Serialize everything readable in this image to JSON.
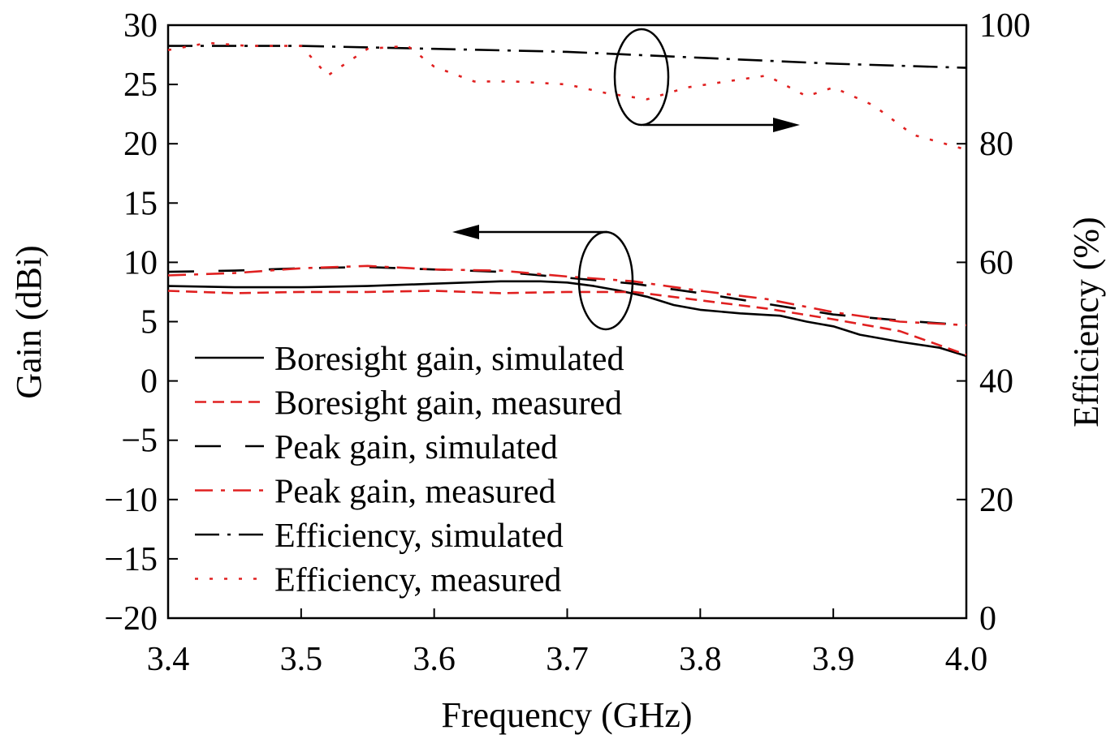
{
  "chart_data": {
    "type": "line",
    "xlabel": "Frequency (GHz)",
    "ylabel": "Gain (dBi)",
    "y2label": "Efficiency (%)",
    "xlim": [
      3.4,
      4.0
    ],
    "ylim": [
      -20,
      30
    ],
    "y2lim": [
      0,
      100
    ],
    "x_ticks": [
      "3.4",
      "3.5",
      "3.6",
      "3.7",
      "3.8",
      "3.9",
      "4.0"
    ],
    "y_ticks": [
      "30",
      "25",
      "20",
      "15",
      "10",
      "5",
      "0",
      "−5",
      "−10",
      "−15",
      "−20"
    ],
    "y2_ticks": [
      "100",
      "80",
      "60",
      "40",
      "20",
      "0"
    ],
    "grid": false,
    "legend_position": "lower-left",
    "series": [
      {
        "name": "Boresight gain, simulated",
        "axis": "left",
        "color": "#000000",
        "style": "solid",
        "x": [
          3.4,
          3.45,
          3.5,
          3.55,
          3.6,
          3.65,
          3.68,
          3.7,
          3.72,
          3.74,
          3.76,
          3.78,
          3.8,
          3.83,
          3.86,
          3.88,
          3.9,
          3.92,
          3.95,
          3.98,
          4.0
        ],
        "y": [
          8.0,
          7.9,
          7.9,
          8.0,
          8.2,
          8.4,
          8.4,
          8.3,
          8.0,
          7.6,
          7.1,
          6.4,
          6.0,
          5.7,
          5.5,
          5.0,
          4.6,
          3.9,
          3.3,
          2.8,
          2.1
        ]
      },
      {
        "name": "Boresight gain, measured",
        "axis": "left",
        "color": "#e02020",
        "style": "dashed",
        "x": [
          3.4,
          3.45,
          3.5,
          3.55,
          3.6,
          3.65,
          3.7,
          3.75,
          3.8,
          3.85,
          3.9,
          3.95,
          4.0
        ],
        "y": [
          7.6,
          7.4,
          7.5,
          7.5,
          7.6,
          7.4,
          7.5,
          7.5,
          6.8,
          6.1,
          5.2,
          4.2,
          2.2
        ]
      },
      {
        "name": "Peak gain, simulated",
        "axis": "left",
        "color": "#000000",
        "style": "long-dash",
        "x": [
          3.4,
          3.45,
          3.5,
          3.55,
          3.6,
          3.65,
          3.7,
          3.75,
          3.8,
          3.85,
          3.9,
          3.95,
          4.0
        ],
        "y": [
          9.2,
          9.3,
          9.5,
          9.6,
          9.4,
          9.2,
          8.7,
          8.2,
          7.4,
          6.5,
          5.6,
          5.1,
          4.7
        ]
      },
      {
        "name": "Peak gain, measured",
        "axis": "left",
        "color": "#e02020",
        "style": "dash-dot",
        "x": [
          3.4,
          3.45,
          3.5,
          3.55,
          3.6,
          3.65,
          3.7,
          3.75,
          3.8,
          3.85,
          3.9,
          3.95,
          4.0
        ],
        "y": [
          8.9,
          9.1,
          9.5,
          9.7,
          9.4,
          9.3,
          8.8,
          8.4,
          7.6,
          6.9,
          5.8,
          5.0,
          4.7
        ]
      },
      {
        "name": "Efficiency, simulated",
        "axis": "right",
        "color": "#000000",
        "style": "dash-dot-long",
        "x": [
          3.4,
          3.5,
          3.6,
          3.7,
          3.8,
          3.9,
          4.0
        ],
        "y": [
          96.5,
          96.5,
          96.0,
          95.5,
          94.5,
          93.5,
          92.8
        ]
      },
      {
        "name": "Efficiency, measured",
        "axis": "right",
        "color": "#e02020",
        "style": "dotted",
        "x": [
          3.4,
          3.43,
          3.46,
          3.5,
          3.52,
          3.55,
          3.58,
          3.6,
          3.63,
          3.66,
          3.7,
          3.73,
          3.76,
          3.79,
          3.82,
          3.85,
          3.88,
          3.9,
          3.93,
          3.96,
          4.0
        ],
        "y": [
          95.8,
          97.0,
          96.5,
          96.5,
          91.5,
          96.0,
          96.5,
          93.0,
          90.5,
          90.5,
          90.0,
          88.5,
          87.5,
          89.5,
          90.5,
          91.5,
          88.0,
          89.5,
          86.5,
          81.5,
          79.0
        ]
      }
    ]
  }
}
